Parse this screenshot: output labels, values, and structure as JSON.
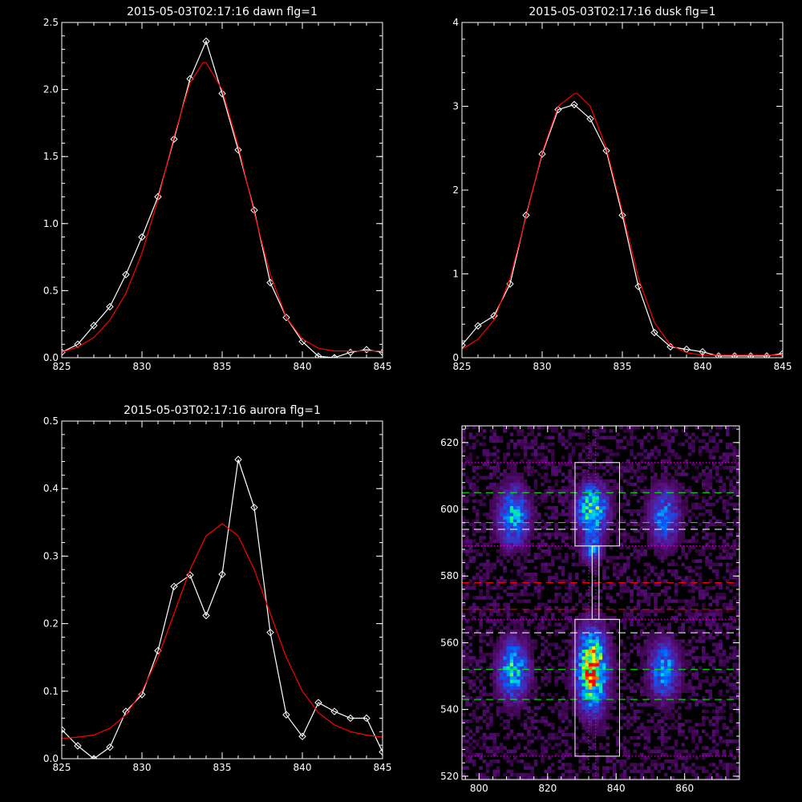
{
  "chart_data": [
    {
      "type": "line",
      "title": "2015-05-03T02:17:16 dawn flg=1",
      "xlim": [
        825,
        845
      ],
      "ylim": [
        0,
        2.5
      ],
      "xticks": [
        "825",
        "830",
        "835",
        "840",
        "845"
      ],
      "yticks": [
        "0.0",
        "0.5",
        "1.0",
        "1.5",
        "2.0",
        "2.5"
      ],
      "series": [
        {
          "color": "#ffffff",
          "marker": "diamond",
          "x": [
            825,
            826,
            827,
            828,
            829,
            830,
            831,
            832,
            833,
            834,
            835,
            836,
            837,
            838,
            839,
            840,
            841,
            842,
            843,
            844,
            845
          ],
          "y": [
            0.04,
            0.1,
            0.24,
            0.38,
            0.62,
            0.9,
            1.2,
            1.63,
            2.08,
            2.36,
            1.97,
            1.55,
            1.1,
            0.56,
            0.3,
            0.12,
            0.01,
            0.0,
            0.04,
            0.06,
            0.04
          ]
        },
        {
          "color": "#ff0000",
          "marker": "none",
          "x": [
            825,
            826,
            827,
            828,
            829,
            830,
            831,
            832,
            833,
            833.8,
            834,
            835,
            836,
            837,
            838,
            839,
            840,
            841,
            842,
            843,
            844,
            845
          ],
          "y": [
            0.04,
            0.08,
            0.15,
            0.28,
            0.48,
            0.78,
            1.18,
            1.65,
            2.05,
            2.2,
            2.2,
            2.0,
            1.58,
            1.08,
            0.62,
            0.3,
            0.14,
            0.07,
            0.05,
            0.05,
            0.05,
            0.05
          ]
        }
      ]
    },
    {
      "type": "line",
      "title": "2015-05-03T02:17:16 dusk flg=1",
      "xlim": [
        825,
        845
      ],
      "ylim": [
        0,
        4
      ],
      "xticks": [
        "825",
        "830",
        "835",
        "840",
        "845"
      ],
      "yticks": [
        "0",
        "1",
        "2",
        "3",
        "4"
      ],
      "series": [
        {
          "color": "#ffffff",
          "marker": "diamond",
          "x": [
            825,
            826,
            827,
            828,
            829,
            830,
            831,
            832,
            833,
            834,
            835,
            836,
            837,
            838,
            839,
            840,
            841,
            842,
            843,
            844,
            845
          ],
          "y": [
            0.15,
            0.38,
            0.5,
            0.88,
            1.7,
            2.43,
            2.96,
            3.02,
            2.85,
            2.47,
            1.7,
            0.85,
            0.3,
            0.13,
            0.1,
            0.07,
            0.02,
            0.02,
            0.02,
            0.02,
            0.05
          ]
        },
        {
          "color": "#ff0000",
          "marker": "none",
          "x": [
            825,
            826,
            827,
            828,
            829,
            830,
            831,
            832,
            832.2,
            833,
            834,
            835,
            836,
            837,
            838,
            839,
            840,
            841,
            842,
            843,
            844,
            845
          ],
          "y": [
            0.1,
            0.22,
            0.45,
            0.95,
            1.68,
            2.45,
            3.0,
            3.15,
            3.15,
            3.0,
            2.5,
            1.75,
            0.95,
            0.42,
            0.15,
            0.06,
            0.03,
            0.03,
            0.03,
            0.03,
            0.03,
            0.03
          ]
        }
      ]
    },
    {
      "type": "line",
      "title": "2015-05-03T02:17:16 aurora flg=1",
      "xlim": [
        825,
        845
      ],
      "ylim": [
        0,
        0.5
      ],
      "xticks": [
        "825",
        "830",
        "835",
        "840",
        "845"
      ],
      "yticks": [
        "0.0",
        "0.1",
        "0.2",
        "0.3",
        "0.4",
        "0.5"
      ],
      "series": [
        {
          "color": "#ffffff",
          "marker": "diamond",
          "x": [
            825,
            826,
            827,
            828,
            829,
            830,
            831,
            832,
            833,
            834,
            835,
            836,
            837,
            838,
            839,
            840,
            841,
            842,
            843,
            844,
            845
          ],
          "y": [
            0.043,
            0.019,
            0.0,
            0.017,
            0.07,
            0.095,
            0.16,
            0.255,
            0.272,
            0.212,
            0.273,
            0.443,
            0.372,
            0.187,
            0.065,
            0.033,
            0.083,
            0.07,
            0.06,
            0.06,
            0.01
          ]
        },
        {
          "color": "#ff0000",
          "marker": "none",
          "x": [
            825,
            826,
            827,
            828,
            829,
            830,
            831,
            832,
            833,
            834,
            835,
            836,
            837,
            838,
            839,
            840,
            841,
            842,
            843,
            844,
            845
          ],
          "y": [
            0.03,
            0.032,
            0.035,
            0.045,
            0.065,
            0.1,
            0.15,
            0.215,
            0.28,
            0.33,
            0.348,
            0.33,
            0.28,
            0.215,
            0.15,
            0.1,
            0.068,
            0.05,
            0.04,
            0.035,
            0.032
          ]
        }
      ]
    },
    {
      "type": "heatmap",
      "title": "",
      "xlim": [
        795,
        876
      ],
      "ylim": [
        519,
        625
      ],
      "xticks": [
        "800",
        "820",
        "840",
        "860"
      ],
      "yticks": [
        "520",
        "540",
        "560",
        "580",
        "600",
        "620"
      ],
      "colormap": [
        "#2a0030",
        "#5a1080",
        "#4030c0",
        "#0060ff",
        "#00c0ff",
        "#00ff80",
        "#ffff00",
        "#ff0000"
      ],
      "blobs": [
        {
          "x": 810,
          "y": 598,
          "sx": 3,
          "sy": 6,
          "peak": 0.55
        },
        {
          "x": 810,
          "y": 552,
          "sx": 3,
          "sy": 6,
          "peak": 0.6
        },
        {
          "x": 833,
          "y": 600,
          "sx": 3,
          "sy": 5,
          "peak": 0.75
        },
        {
          "x": 833,
          "y": 588,
          "sx": 2,
          "sy": 3,
          "peak": 0.4
        },
        {
          "x": 833,
          "y": 552,
          "sx": 3,
          "sy": 8,
          "peak": 0.95
        },
        {
          "x": 854,
          "y": 598,
          "sx": 3,
          "sy": 6,
          "peak": 0.45
        },
        {
          "x": 854,
          "y": 552,
          "sx": 3,
          "sy": 6,
          "peak": 0.5
        }
      ],
      "hlines": [
        {
          "y": 614,
          "color": "#ff00ff",
          "style": "dotted"
        },
        {
          "y": 605,
          "color": "#00ff00",
          "style": "dashed"
        },
        {
          "y": 596,
          "color": "#00ff00",
          "style": "dashed"
        },
        {
          "y": 594,
          "color": "#ffffff",
          "style": "dashed"
        },
        {
          "y": 589,
          "color": "#ff00ff",
          "style": "dotted"
        },
        {
          "y": 578,
          "color": "#ff0000",
          "style": "dashed"
        },
        {
          "y": 570,
          "color": "#ff0000",
          "style": "dashed"
        },
        {
          "y": 567,
          "color": "#ff00ff",
          "style": "dotted"
        },
        {
          "y": 563,
          "color": "#ffffff",
          "style": "dashed"
        },
        {
          "y": 552,
          "color": "#00ff00",
          "style": "dashed"
        },
        {
          "y": 543,
          "color": "#00ff00",
          "style": "dashed"
        },
        {
          "y": 526,
          "color": "#ff00ff",
          "style": "dotted"
        }
      ],
      "vlines": [
        {
          "x": 832,
          "color": "#ff00ff",
          "style": "dotted"
        },
        {
          "x": 834,
          "color": "#ff00ff",
          "style": "dotted"
        }
      ],
      "boxes": [
        {
          "x0": 828,
          "x1": 841,
          "y0": 589,
          "y1": 614
        },
        {
          "x0": 828,
          "x1": 841,
          "y0": 526,
          "y1": 567
        },
        {
          "x0": 833,
          "x1": 835,
          "y0": 567,
          "y1": 589
        }
      ]
    }
  ]
}
